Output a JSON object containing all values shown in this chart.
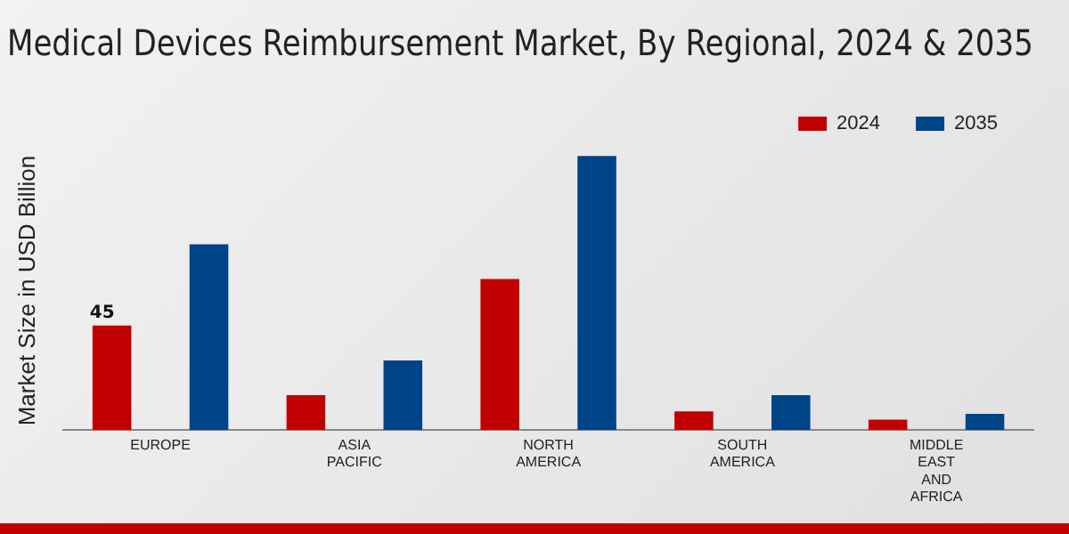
{
  "chart_data": {
    "type": "bar",
    "title": "Medical Devices Reimbursement Market, By Regional, 2024 & 2035",
    "ylabel": "Market Size in USD Billion",
    "categories": [
      "EUROPE",
      "ASIA PACIFIC",
      "NORTH AMERICA",
      "SOUTH AMERICA",
      "MIDDLE EAST AND AFRICA"
    ],
    "series": [
      {
        "name": "2024",
        "color": "#c00000",
        "values": [
          45,
          15,
          65,
          8,
          4.5
        ],
        "value_labels": [
          "45",
          null,
          null,
          null,
          null
        ]
      },
      {
        "name": "2035",
        "color": "#004488",
        "values": [
          80,
          30,
          118,
          15,
          7
        ],
        "value_labels": [
          null,
          null,
          null,
          null,
          null
        ]
      }
    ],
    "legend": "top right",
    "grid": false
  }
}
